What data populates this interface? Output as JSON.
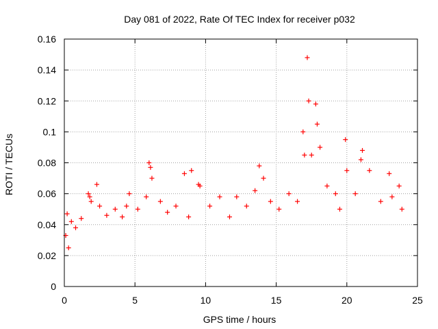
{
  "chart_data": {
    "type": "scatter",
    "title": "Day 081 of 2022, Rate Of TEC Index for receiver p032",
    "xlabel": "GPS time / hours",
    "ylabel": "ROTI / TECUs",
    "xlim": [
      0,
      25
    ],
    "ylim": [
      0,
      0.16
    ],
    "x_ticks": [
      "0",
      "5",
      "10",
      "15",
      "20",
      "25"
    ],
    "y_ticks": [
      "0",
      "0.02",
      "0.04",
      "0.06",
      "0.08",
      "0.1",
      "0.12",
      "0.14",
      "0.16"
    ],
    "x_tick_values": [
      0,
      5,
      10,
      15,
      20,
      25
    ],
    "y_tick_values": [
      0,
      0.02,
      0.04,
      0.06,
      0.08,
      0.1,
      0.12,
      0.14,
      0.16
    ],
    "grid": true,
    "marker": "+",
    "color": "#ff0000",
    "series": [
      {
        "x": [
          0.1,
          0.2,
          0.3,
          0.5,
          0.8,
          1.2,
          1.7,
          1.8,
          1.9,
          2.3,
          2.5,
          3.0,
          3.6,
          4.1,
          4.4,
          4.6,
          5.2,
          5.8,
          6.0,
          6.1,
          6.2,
          6.8,
          7.3,
          7.9,
          8.5,
          8.8,
          9.0,
          9.5,
          9.6,
          10.3,
          11.0,
          11.7,
          12.2,
          12.9,
          13.5,
          13.8,
          14.1,
          14.6,
          15.2,
          15.9,
          16.5,
          16.9,
          17.0,
          17.2,
          17.3,
          17.5,
          17.8,
          17.9,
          18.1,
          18.6,
          19.2,
          19.5,
          19.9,
          20.0,
          20.6,
          21.0,
          21.1,
          21.6,
          22.4,
          23.0,
          23.2,
          23.7,
          23.9
        ],
        "y": [
          0.033,
          0.047,
          0.025,
          0.042,
          0.038,
          0.044,
          0.06,
          0.058,
          0.055,
          0.066,
          0.052,
          0.046,
          0.05,
          0.045,
          0.052,
          0.06,
          0.05,
          0.058,
          0.08,
          0.077,
          0.07,
          0.055,
          0.048,
          0.052,
          0.073,
          0.045,
          0.075,
          0.066,
          0.065,
          0.052,
          0.058,
          0.045,
          0.058,
          0.052,
          0.062,
          0.078,
          0.07,
          0.055,
          0.05,
          0.06,
          0.055,
          0.1,
          0.085,
          0.148,
          0.12,
          0.085,
          0.118,
          0.105,
          0.09,
          0.065,
          0.06,
          0.05,
          0.095,
          0.075,
          0.06,
          0.082,
          0.088,
          0.075,
          0.055,
          0.073,
          0.058,
          0.065,
          0.05
        ]
      }
    ]
  }
}
